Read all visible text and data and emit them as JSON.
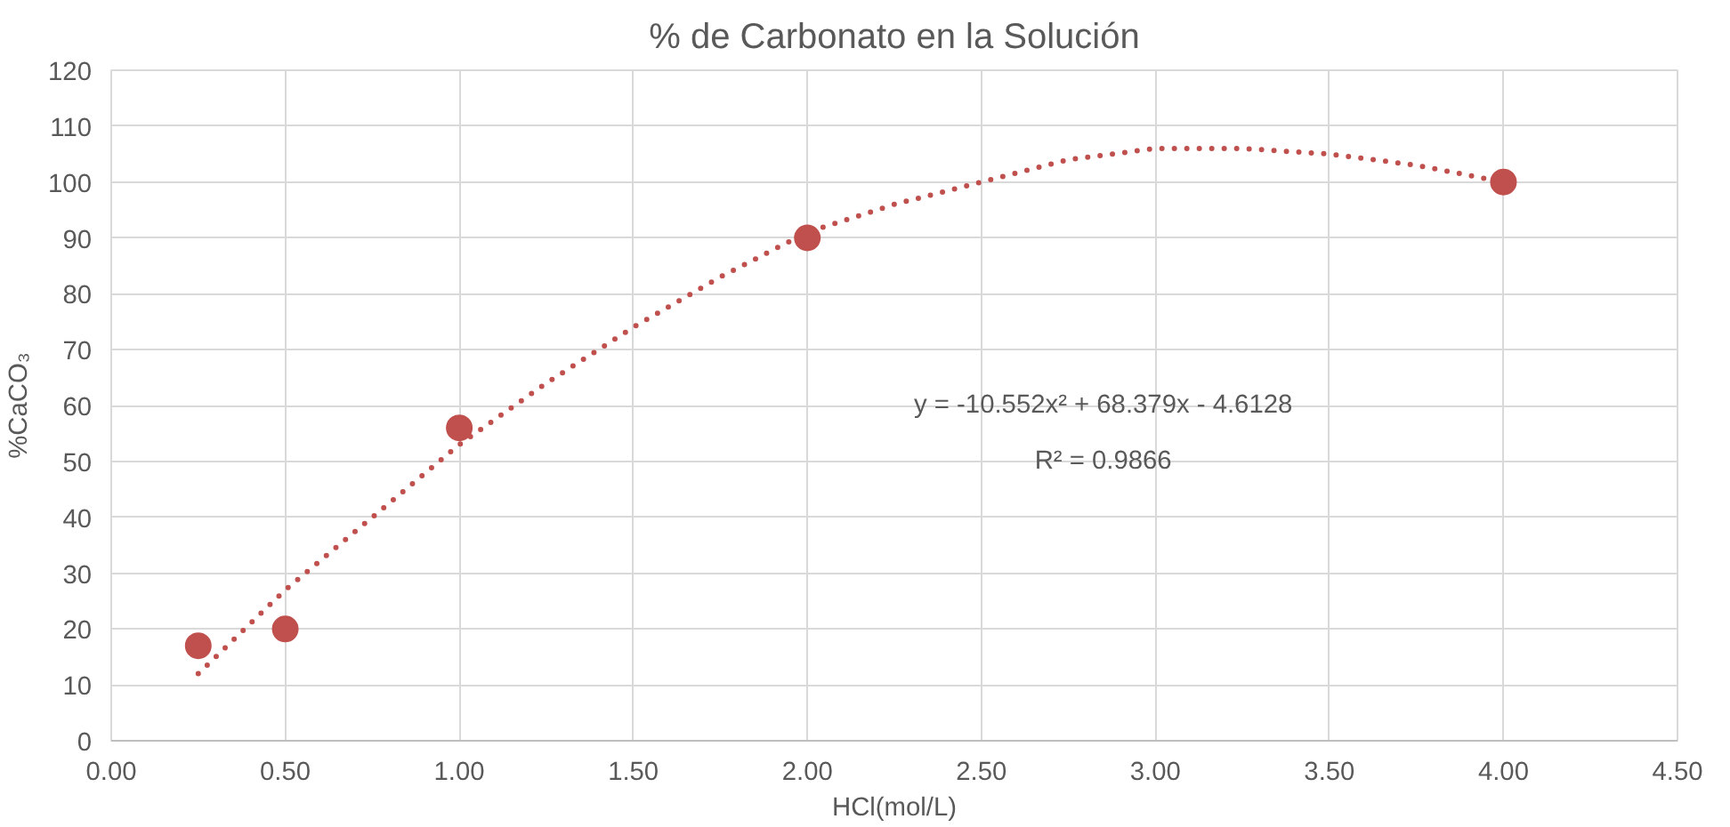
{
  "chart_data": {
    "type": "scatter",
    "title": "% de Carbonato en la Solución",
    "xlabel": "HCl(mol/L)",
    "ylabel": "%CaCO₃",
    "xlim": [
      0,
      4.5
    ],
    "xticks": [
      {
        "value": 0,
        "label": "0.00"
      },
      {
        "value": 0.5,
        "label": "0.50"
      },
      {
        "value": 1,
        "label": "1.00"
      },
      {
        "value": 1.5,
        "label": "1.50"
      },
      {
        "value": 2,
        "label": "2.00"
      },
      {
        "value": 2.5,
        "label": "2.50"
      },
      {
        "value": 3,
        "label": "3.00"
      },
      {
        "value": 3.5,
        "label": "3.50"
      },
      {
        "value": 4,
        "label": "4.00"
      },
      {
        "value": 4.5,
        "label": "4.50"
      }
    ],
    "ylim": [
      0,
      120
    ],
    "yticks": [
      0,
      10,
      20,
      30,
      40,
      50,
      60,
      70,
      80,
      90,
      100,
      110,
      120
    ],
    "grid": true,
    "marker": "circle",
    "series": [
      {
        "color": "#c0504d",
        "x": [
          0.25,
          0.5,
          1,
          2,
          4
        ],
        "values": [
          17,
          20,
          56,
          90,
          100
        ]
      },
      {
        "type": "line",
        "line_style": "dotted",
        "marker": "none",
        "color": "#c0504d",
        "x": [
          0.25,
          0.5,
          0.75,
          1,
          1.25,
          1.5,
          1.75,
          2,
          2.25,
          2.5,
          2.75,
          3,
          3.25,
          3.5,
          3.75,
          4
        ],
        "values": [
          12,
          27,
          40,
          53,
          64,
          74,
          83,
          91,
          96,
          100,
          104,
          106,
          106,
          105,
          103,
          100
        ]
      }
    ],
    "annotations": [
      "y = -10.552x² + 68.379x - 4.6128",
      "R² = 0.9866"
    ]
  }
}
